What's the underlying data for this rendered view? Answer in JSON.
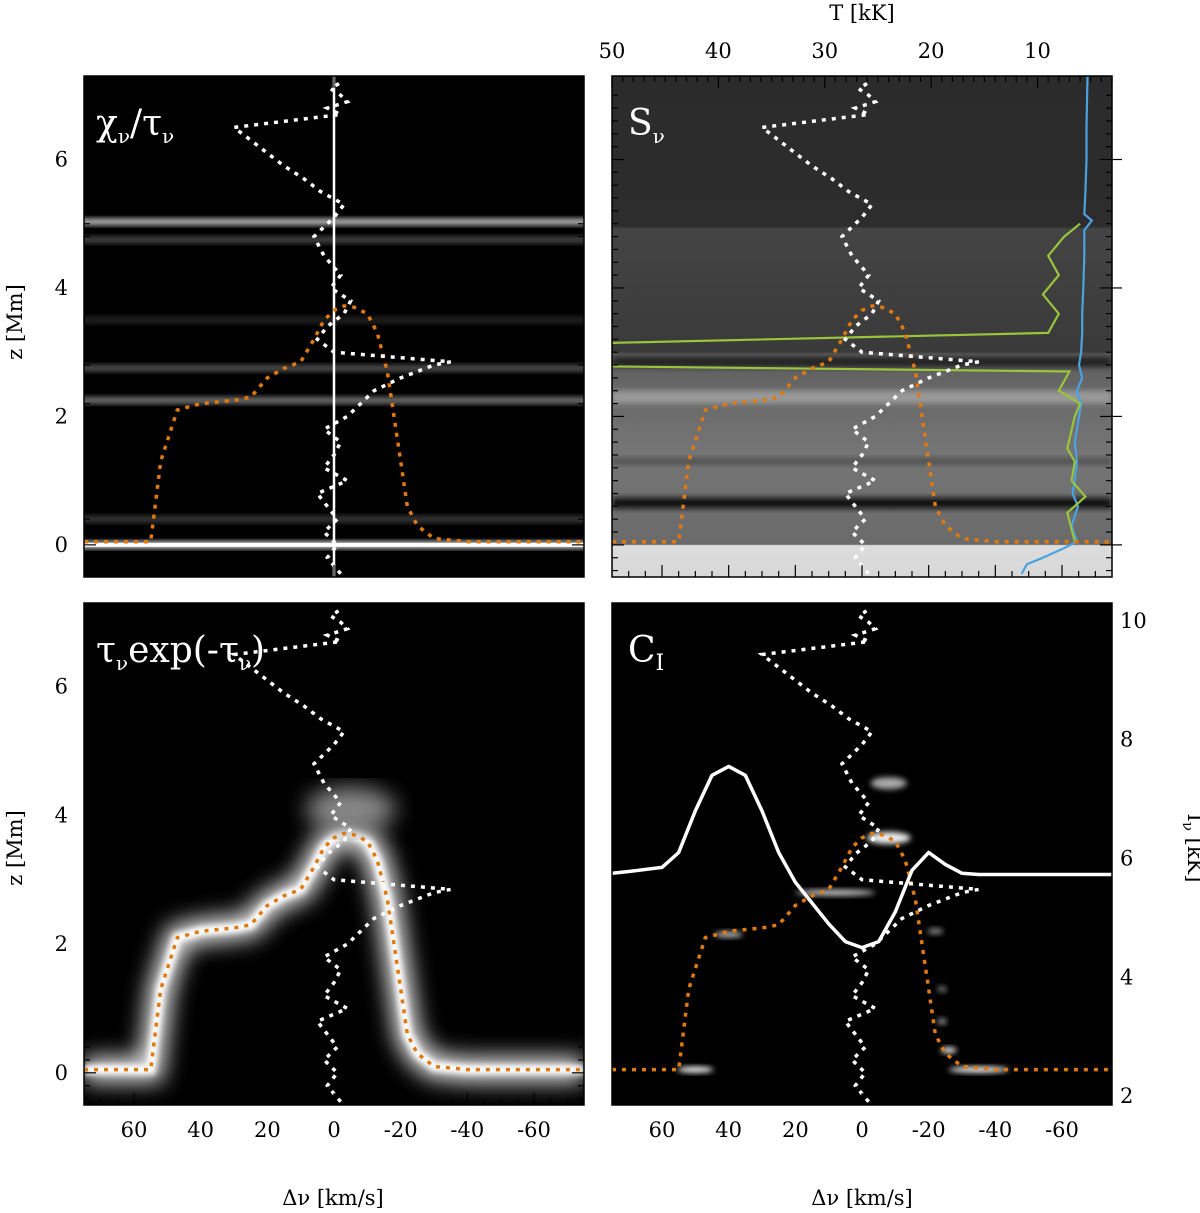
{
  "chart_data": [
    {
      "type": "heatmap",
      "title": "χν/τν",
      "xlabel": "",
      "ylabel": "z [Mm]",
      "xlim": [
        75,
        -75
      ],
      "ylim": [
        -0.5,
        7.3
      ],
      "x_ticks": [
        "60",
        "40",
        "20",
        "0",
        "-20",
        "-40",
        "-60"
      ],
      "y_ticks": [
        "0",
        "2",
        "4",
        "6"
      ],
      "bright_bands": [
        {
          "z": 0.0,
          "intensity": 1.0
        },
        {
          "z": 5.03,
          "intensity": 0.8
        },
        {
          "z": 4.75,
          "intensity": 0.3
        },
        {
          "z": 3.5,
          "intensity": 0.15
        },
        {
          "z": 2.75,
          "intensity": 0.35
        },
        {
          "z": 2.25,
          "intensity": 0.5
        },
        {
          "z": 0.4,
          "intensity": 0.25
        }
      ],
      "vertical_line_x": 0
    },
    {
      "type": "heatmap",
      "title": "Sν",
      "xlabel": "",
      "ylabel": "",
      "top_xlabel": "T [kK]",
      "top_x_ticks": [
        "50",
        "40",
        "30",
        "20",
        "10"
      ],
      "xlim": [
        75,
        -75
      ],
      "ylim": [
        -0.5,
        7.3
      ],
      "temperature_profile": {
        "name": "T",
        "z": [
          -0.45,
          -0.3,
          -0.2,
          -0.05,
          0.05,
          0.3,
          0.6,
          0.8,
          1.0,
          1.3,
          1.6,
          1.9,
          2.2,
          2.4,
          2.6,
          2.8,
          3.0,
          3.3,
          3.6,
          4.0,
          4.5,
          4.9,
          5.05,
          5.15,
          5.5,
          6.0,
          6.5,
          7.3
        ],
        "T": [
          11.5,
          11.0,
          9.5,
          7.5,
          6.3,
          6.8,
          6.2,
          6.7,
          6.5,
          6.3,
          6.5,
          6.2,
          5.9,
          6.3,
          5.8,
          6.1,
          5.9,
          5.8,
          5.8,
          5.7,
          5.6,
          5.6,
          4.9,
          5.6,
          5.5,
          5.4,
          5.4,
          5.3
        ]
      },
      "source_function_profile": {
        "z": [
          0.05,
          0.5,
          0.75,
          1.0,
          1.3,
          1.5,
          2.0,
          2.2,
          2.4,
          2.7,
          2.8,
          3.1,
          3.3,
          3.6,
          3.9,
          4.2,
          4.5,
          4.8,
          5.0
        ],
        "T": [
          6.5,
          7.2,
          5.5,
          6.8,
          6.5,
          7.2,
          6.5,
          6.0,
          8.0,
          7.0,
          62.0,
          62.0,
          9.0,
          8.0,
          9.5,
          8.0,
          9.0,
          7.5,
          6.0
        ]
      }
    },
    {
      "type": "heatmap",
      "title": "τνexp(-τν)",
      "xlabel": "Δν [km/s]",
      "ylabel": "z [Mm]",
      "xlim": [
        75,
        -75
      ],
      "ylim": [
        -0.5,
        7.3
      ],
      "x_ticks": [
        "60",
        "40",
        "20",
        "0",
        "-20",
        "-40",
        "-60"
      ],
      "y_ticks": [
        "0",
        "2",
        "4",
        "6"
      ]
    },
    {
      "type": "heatmap",
      "title": "CI",
      "xlabel": "Δν [km/s]",
      "ylabel": "",
      "right_ylabel": "Iν [kK]",
      "right_y_ticks": [
        "2",
        "4",
        "6",
        "8",
        "10"
      ],
      "right_ylim": [
        1.85,
        10.3
      ],
      "xlim": [
        75,
        -75
      ],
      "x_ticks": [
        "60",
        "40",
        "20",
        "0",
        "-20",
        "-40",
        "-60"
      ],
      "intensity_profile": {
        "name": "Iν",
        "dv": [
          75,
          70,
          60,
          55,
          50,
          45,
          40,
          35,
          30,
          25,
          20,
          15,
          10,
          5,
          0,
          -5,
          -10,
          -15,
          -20,
          -25,
          -30,
          -35,
          -40,
          -50,
          -60,
          -75
        ],
        "I": [
          5.75,
          5.78,
          5.85,
          6.1,
          6.8,
          7.4,
          7.55,
          7.4,
          6.8,
          6.1,
          5.6,
          5.25,
          4.9,
          4.6,
          4.5,
          4.6,
          5.1,
          5.8,
          6.1,
          5.9,
          5.75,
          5.73,
          5.73,
          5.73,
          5.73,
          5.73
        ]
      }
    }
  ],
  "shared": {
    "tau_unity": {
      "dv": [
        75,
        62,
        55,
        52,
        47,
        40,
        30,
        25,
        20,
        15,
        10,
        6,
        3,
        0,
        -3,
        -6,
        -10,
        -13,
        -16,
        -18,
        -20,
        -22,
        -25,
        -30,
        -40,
        -55,
        -75
      ],
      "z": [
        0.05,
        0.05,
        0.05,
        1.3,
        2.1,
        2.2,
        2.25,
        2.3,
        2.6,
        2.75,
        2.85,
        3.2,
        3.5,
        3.65,
        3.72,
        3.7,
        3.6,
        3.3,
        2.7,
        2.0,
        1.3,
        0.6,
        0.3,
        0.1,
        0.05,
        0.05,
        0.05
      ]
    },
    "velocity": {
      "dv": [
        -2,
        2,
        -1,
        3,
        -1,
        2,
        5,
        -4,
        3,
        0,
        -2,
        3,
        -4,
        -8,
        -12,
        -20,
        -30,
        -35,
        0,
        5,
        2,
        -3,
        -5,
        1,
        -2,
        3,
        6,
        0,
        -3,
        4,
        9,
        15,
        20,
        25,
        30,
        -2,
        2,
        -4,
        -2,
        1,
        -2
      ],
      "z": [
        -0.45,
        -0.2,
        0.0,
        0.2,
        0.4,
        0.6,
        0.8,
        1.0,
        1.2,
        1.4,
        1.6,
        1.8,
        2.0,
        2.2,
        2.4,
        2.6,
        2.8,
        2.85,
        3.0,
        3.2,
        3.4,
        3.6,
        3.8,
        4.0,
        4.2,
        4.5,
        4.8,
        5.1,
        5.3,
        5.5,
        5.7,
        5.9,
        6.1,
        6.3,
        6.5,
        6.7,
        6.8,
        6.9,
        7.0,
        7.1,
        7.2
      ]
    }
  }
}
